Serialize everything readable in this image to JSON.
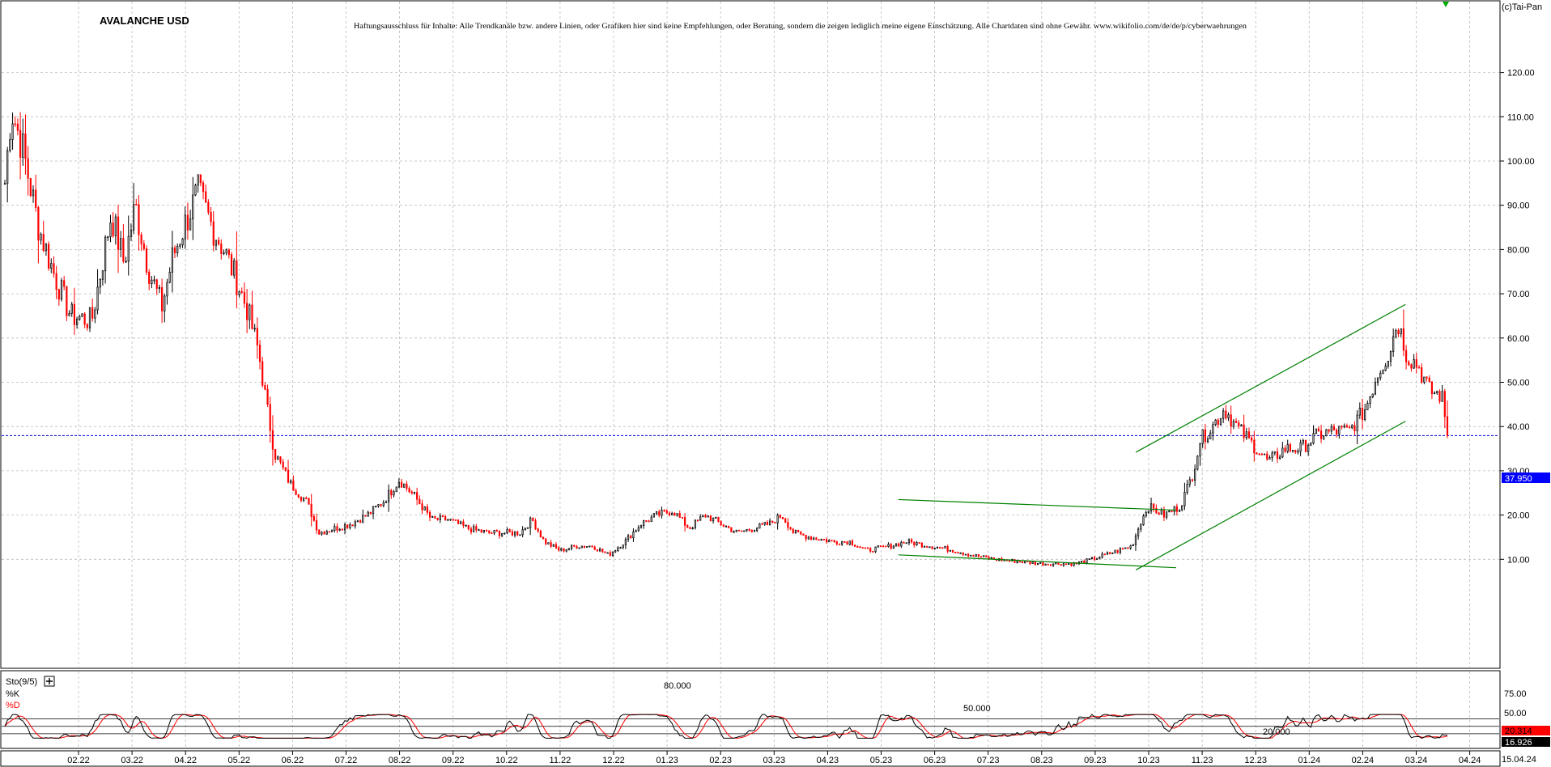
{
  "header": {
    "title": "AVALANCHE USD",
    "disclaimer": "Haftungsausschluss für Inhalte: Alle Trendkanäle bzw. andere Linien, oder Grafiken hier sind keine Empfehlungen, oder Beratung, sondern die zeigen lediglich meine eigene Einschätzung. Alle Chartdaten sind ohne Gewähr. www.wikifolio.com/de/de/p/cyberwaehrungen",
    "copyright": "(c)Tai-Pan"
  },
  "colors": {
    "up_candle": "#000000",
    "down_candle": "#ff0000",
    "trendline": "#008000",
    "price_line": "#0000cc",
    "price_badge": "#0000ff",
    "stoch_k": "#000000",
    "stoch_d": "#ff0000",
    "grid": "#bbbbbb",
    "marker": "#00aa00"
  },
  "chart_data": [
    {
      "type": "candlestick",
      "title": "AVALANCHE USD",
      "x_tick_labels": [
        "02.22",
        "03.22",
        "04.22",
        "05.22",
        "06.22",
        "07.22",
        "08.22",
        "09.22",
        "10.22",
        "11.22",
        "12.22",
        "01.23",
        "02.23",
        "03.23",
        "04.23",
        "05.23",
        "06.23",
        "07.23",
        "08.23",
        "09.23",
        "10.23",
        "11.23",
        "12.23",
        "01.24",
        "02.24",
        "03.24",
        "04.24"
      ],
      "x_end_label": "15.04.24",
      "y_tick_labels": [
        "120.00",
        "110.00",
        "100.00",
        "90.00",
        "80.00",
        "70.00",
        "60.00",
        "50.00",
        "40.00",
        "30.00",
        "20.00",
        "10.00"
      ],
      "ylim": [
        0,
        126.5
      ],
      "grid": true,
      "last_price": "37.950",
      "last_price_value": 37.95,
      "anchors": [
        {
          "x": 0,
          "close": 95
        },
        {
          "x": 0.08,
          "close": 112
        },
        {
          "x": 0.22,
          "close": 103
        },
        {
          "x": 0.42,
          "close": 85
        },
        {
          "x": 0.62,
          "close": 74
        },
        {
          "x": 0.82,
          "close": 65
        },
        {
          "x": 1.08,
          "close": 64
        },
        {
          "x": 1.32,
          "close": 88
        },
        {
          "x": 1.48,
          "close": 77
        },
        {
          "x": 1.62,
          "close": 90
        },
        {
          "x": 1.78,
          "close": 76
        },
        {
          "x": 1.95,
          "close": 67
        },
        {
          "x": 2.08,
          "close": 78
        },
        {
          "x": 2.22,
          "close": 85
        },
        {
          "x": 2.4,
          "close": 93
        },
        {
          "x": 2.58,
          "close": 85
        },
        {
          "x": 2.72,
          "close": 80
        },
        {
          "x": 2.88,
          "close": 73
        },
        {
          "x": 3.02,
          "close": 66
        },
        {
          "x": 3.15,
          "close": 57
        },
        {
          "x": 3.25,
          "close": 45
        },
        {
          "x": 3.35,
          "close": 34
        },
        {
          "x": 3.55,
          "close": 27
        },
        {
          "x": 3.75,
          "close": 23
        },
        {
          "x": 3.9,
          "close": 16
        },
        {
          "x": 4.1,
          "close": 17
        },
        {
          "x": 4.3,
          "close": 18
        },
        {
          "x": 4.5,
          "close": 20
        },
        {
          "x": 4.7,
          "close": 23
        },
        {
          "x": 4.9,
          "close": 28
        },
        {
          "x": 5.1,
          "close": 24
        },
        {
          "x": 5.3,
          "close": 19
        },
        {
          "x": 5.5,
          "close": 19
        },
        {
          "x": 5.75,
          "close": 17
        },
        {
          "x": 6.0,
          "close": 16
        },
        {
          "x": 6.2,
          "close": 16
        },
        {
          "x": 6.4,
          "close": 16
        },
        {
          "x": 6.55,
          "close": 19
        },
        {
          "x": 6.7,
          "close": 14
        },
        {
          "x": 6.9,
          "close": 12
        },
        {
          "x": 7.1,
          "close": 13
        },
        {
          "x": 7.3,
          "close": 13
        },
        {
          "x": 7.5,
          "close": 11
        },
        {
          "x": 7.7,
          "close": 14
        },
        {
          "x": 7.9,
          "close": 18
        },
        {
          "x": 8.1,
          "close": 20
        },
        {
          "x": 8.3,
          "close": 21
        },
        {
          "x": 8.5,
          "close": 17
        },
        {
          "x": 8.7,
          "close": 20
        },
        {
          "x": 8.9,
          "close": 18
        },
        {
          "x": 9.1,
          "close": 16
        },
        {
          "x": 9.3,
          "close": 17
        },
        {
          "x": 9.5,
          "close": 18
        },
        {
          "x": 9.65,
          "close": 20
        },
        {
          "x": 9.8,
          "close": 16
        },
        {
          "x": 10.0,
          "close": 15
        },
        {
          "x": 10.3,
          "close": 14
        },
        {
          "x": 10.5,
          "close": 14
        },
        {
          "x": 10.7,
          "close": 12
        },
        {
          "x": 11.0,
          "close": 13
        },
        {
          "x": 11.2,
          "close": 14
        },
        {
          "x": 11.5,
          "close": 13
        },
        {
          "x": 11.8,
          "close": 12
        },
        {
          "x": 12.0,
          "close": 11
        },
        {
          "x": 12.3,
          "close": 10
        },
        {
          "x": 12.6,
          "close": 9.5
        },
        {
          "x": 12.9,
          "close": 9
        },
        {
          "x": 13.1,
          "close": 9
        },
        {
          "x": 13.3,
          "close": 9
        },
        {
          "x": 13.5,
          "close": 10
        },
        {
          "x": 13.75,
          "close": 11.5
        },
        {
          "x": 14.0,
          "close": 13
        },
        {
          "x": 14.1,
          "close": 18
        },
        {
          "x": 14.2,
          "close": 22
        },
        {
          "x": 14.4,
          "close": 20
        },
        {
          "x": 14.6,
          "close": 22
        },
        {
          "x": 14.75,
          "close": 29
        },
        {
          "x": 14.85,
          "close": 37
        },
        {
          "x": 15.0,
          "close": 40
        },
        {
          "x": 15.15,
          "close": 44
        },
        {
          "x": 15.3,
          "close": 40
        },
        {
          "x": 15.5,
          "close": 36
        },
        {
          "x": 15.7,
          "close": 32
        },
        {
          "x": 15.9,
          "close": 35
        },
        {
          "x": 16.1,
          "close": 35
        },
        {
          "x": 16.3,
          "close": 38
        },
        {
          "x": 16.5,
          "close": 39
        },
        {
          "x": 16.7,
          "close": 39
        },
        {
          "x": 16.9,
          "close": 44
        },
        {
          "x": 17.05,
          "close": 52
        },
        {
          "x": 17.2,
          "close": 57
        },
        {
          "x": 17.3,
          "close": 64
        },
        {
          "x": 17.42,
          "close": 56
        },
        {
          "x": 17.55,
          "close": 54
        },
        {
          "x": 17.7,
          "close": 48
        },
        {
          "x": 17.85,
          "close": 47
        },
        {
          "x": 17.92,
          "close": 38
        }
      ],
      "trendlines_note": "channel lines drawn in green",
      "trendlines": [
        {
          "x1": 11.1,
          "y1": 23.5,
          "x2": 14.55,
          "y2": 21.1
        },
        {
          "x1": 11.1,
          "y1": 11.0,
          "x2": 14.55,
          "y2": 8.1
        },
        {
          "x1": 14.05,
          "y1": 7.6,
          "x2": 17.4,
          "y2": 41.2
        },
        {
          "x1": 14.05,
          "y1": 34.2,
          "x2": 17.4,
          "y2": 67.6
        }
      ]
    },
    {
      "type": "line",
      "indicator_label": "Sto(9/5)",
      "series": [
        {
          "name": "%K",
          "color": "#000000"
        },
        {
          "name": "%D",
          "color": "#ff0000"
        }
      ],
      "y_tick_labels": [
        "75.00",
        "50.00"
      ],
      "ylim": [
        0,
        100
      ],
      "level_labels": [
        "80.000",
        "50.000",
        "20.000"
      ],
      "level_values": [
        80,
        50,
        20
      ],
      "last_values": [
        "20.314",
        "16.926"
      ]
    }
  ]
}
